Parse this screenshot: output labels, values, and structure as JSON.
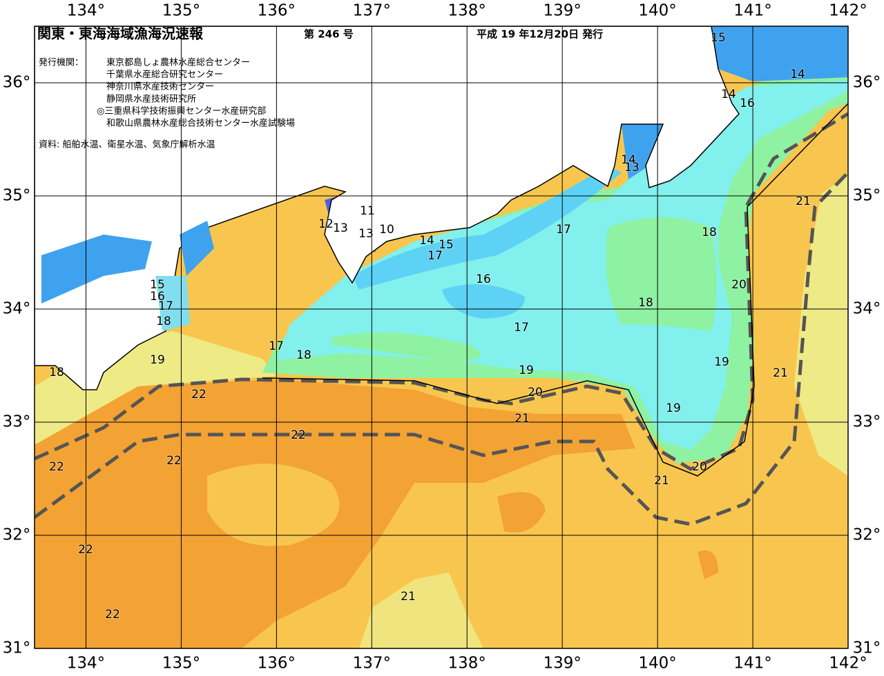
{
  "header": {
    "title": "関東・東海海域漁海況速報",
    "issue": "第 246 号",
    "date": "平成 19 年12月20日 発行",
    "issuers_label": "発行機関：",
    "issuers": [
      "東京都島しょ農林水産総合センター",
      "千葉県水産総合研究センター",
      "神奈川県水産技術センター",
      "静岡県水産技術研究所",
      "◎三重県科学技術振興センター水産研究部",
      "和歌山県農林水産総合技術センター水産試験場"
    ],
    "source": "資料: 船舶水温、衛星水温、気象庁解析水温"
  },
  "map": {
    "xlim": [
      133.46,
      142
    ],
    "ylim": [
      31,
      36.5
    ],
    "grid": true,
    "xticks": [
      {
        "value": 134,
        "label": "134°"
      },
      {
        "value": 135,
        "label": "135°"
      },
      {
        "value": 136,
        "label": "136°"
      },
      {
        "value": 137,
        "label": "137°"
      },
      {
        "value": 138,
        "label": "138°"
      },
      {
        "value": 139,
        "label": "139°"
      },
      {
        "value": 140,
        "label": "140°"
      },
      {
        "value": 141,
        "label": "141°"
      },
      {
        "value": 142,
        "label": "142°"
      }
    ],
    "yticks": [
      {
        "value": 31,
        "label": "31°"
      },
      {
        "value": 32,
        "label": "32°"
      },
      {
        "value": 33,
        "label": "33°"
      },
      {
        "value": 34,
        "label": "34°"
      },
      {
        "value": 35,
        "label": "35°"
      },
      {
        "value": 36,
        "label": "36°"
      }
    ],
    "contour_labels": [
      15,
      14,
      14,
      16,
      14,
      13,
      21,
      11,
      12,
      13,
      13,
      10,
      17,
      18,
      14,
      15,
      17,
      16,
      20,
      15,
      16,
      17,
      18,
      18,
      17,
      17,
      18,
      19,
      19,
      18,
      19,
      21,
      22,
      20,
      19,
      21,
      22,
      22,
      22,
      20,
      21,
      22,
      21,
      22
    ]
  }
}
